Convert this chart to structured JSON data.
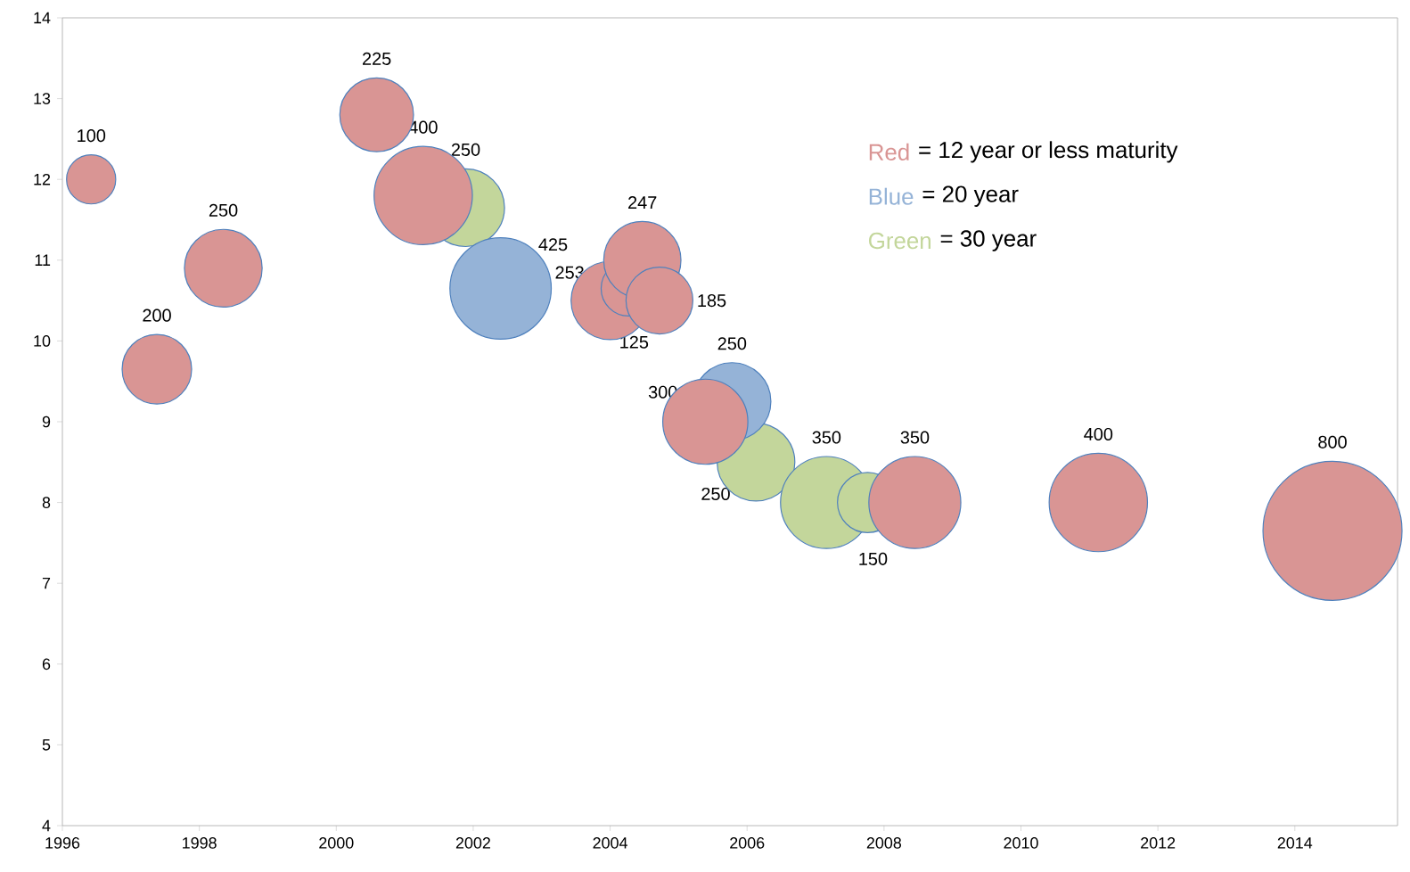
{
  "chart_data": {
    "type": "bubble",
    "xlim": [
      1996,
      2015.5
    ],
    "ylim": [
      4,
      14
    ],
    "xticks": [
      1996,
      1998,
      2000,
      2002,
      2004,
      2006,
      2008,
      2010,
      2012,
      2014
    ],
    "yticks": [
      4,
      5,
      6,
      7,
      8,
      9,
      10,
      11,
      12,
      13,
      14
    ],
    "marker": "circle",
    "grid": false,
    "series": [
      {
        "name": "Red",
        "color": "#d99594",
        "x": [
          1996.42,
          1997.38,
          1998.35,
          2000.59,
          2001.27,
          2004.0,
          2004.27,
          2004.47,
          2004.72,
          2005.39,
          2008.45,
          2011.13,
          2014.55
        ],
        "values": [
          12.0,
          9.65,
          10.9,
          12.8,
          11.8,
          10.5,
          10.65,
          11.0,
          10.5,
          9.0,
          8.0,
          8.0,
          7.65
        ],
        "sizes": [
          100,
          200,
          250,
          225,
          400,
          253,
          125,
          247,
          185,
          300,
          350,
          400,
          800
        ],
        "value_labels": [
          "100",
          "200",
          "250",
          "225",
          "400",
          "253",
          "125",
          "247",
          "185",
          "300",
          "350",
          "400",
          "800"
        ]
      },
      {
        "name": "Blue",
        "color": "#95b3d7",
        "x": [
          2002.4,
          2005.78
        ],
        "values": [
          10.65,
          9.25
        ],
        "sizes": [
          425,
          250
        ],
        "value_labels": [
          "425",
          "250"
        ]
      },
      {
        "name": "Green",
        "color": "#c3d69b",
        "x": [
          2001.89,
          2006.13,
          2007.16,
          2007.76
        ],
        "values": [
          11.65,
          8.5,
          8.0,
          8.0
        ],
        "sizes": [
          250,
          250,
          350,
          150
        ],
        "value_labels": [
          "250",
          "250",
          "350",
          "150"
        ]
      }
    ],
    "annotations": [
      "= 12 year or less maturity",
      "= 20 year",
      "= 30 year"
    ]
  }
}
